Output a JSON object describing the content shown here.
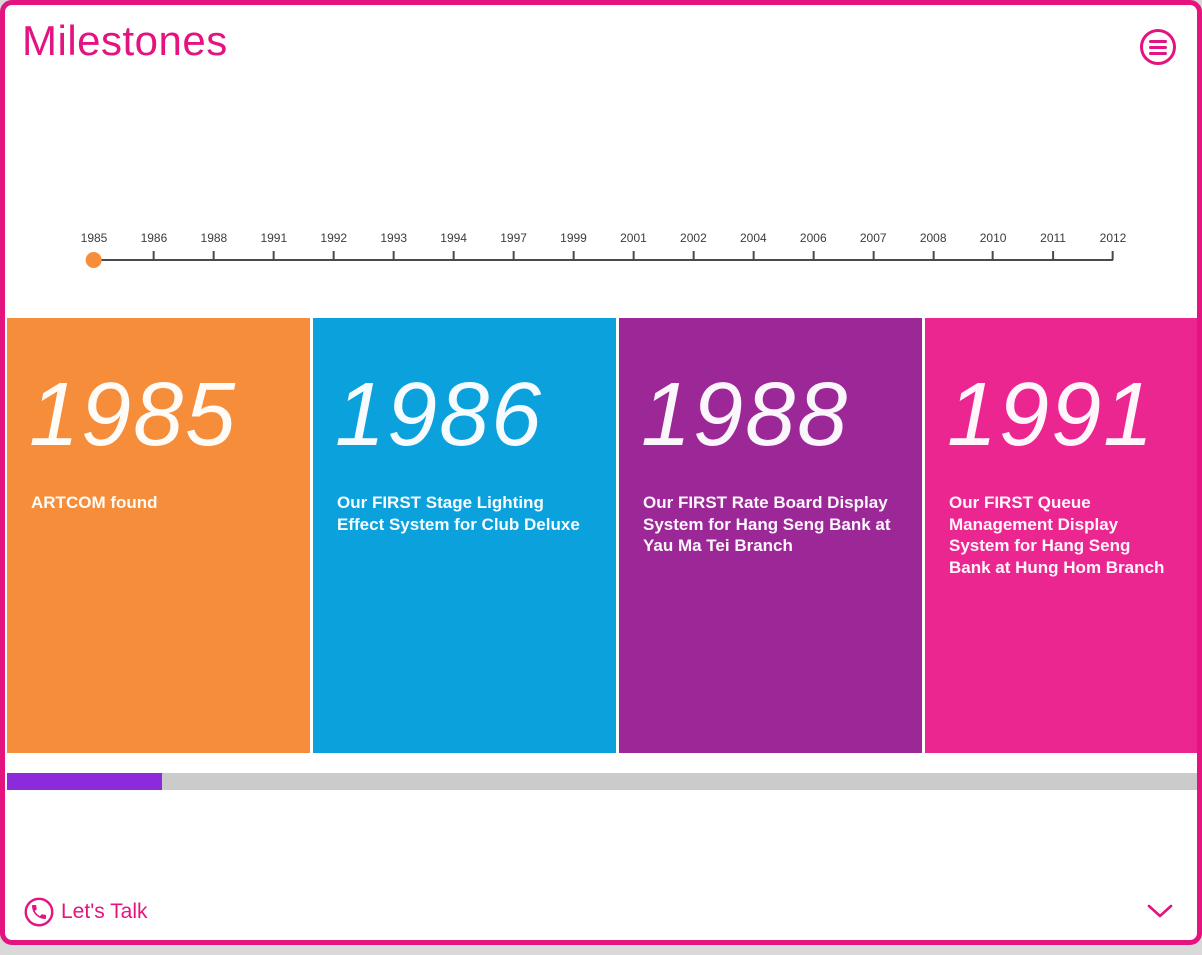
{
  "header": {
    "title": "Milestones"
  },
  "timeline": {
    "years": [
      "1985",
      "1986",
      "1988",
      "1991",
      "1992",
      "1993",
      "1994",
      "1997",
      "1999",
      "2001",
      "2002",
      "2004",
      "2006",
      "2007",
      "2008",
      "2010",
      "2011",
      "2012"
    ],
    "selected_year": "1985"
  },
  "milestones": [
    {
      "year": "1985",
      "description": "ARTCOM found",
      "color": "#f68d3a"
    },
    {
      "year": "1986",
      "description": "Our FIRST Stage Lighting Effect System for Club Deluxe",
      "color": "#0ba1dc"
    },
    {
      "year": "1988",
      "description": "Our FIRST Rate Board Display System for Hang Seng Bank at Yau Ma Tei Branch",
      "color": "#9c2898"
    },
    {
      "year": "1991",
      "description": "Our FIRST Queue Management Display System for Hang Seng Bank at Hung Hom Branch",
      "color": "#ec2691"
    }
  ],
  "scrollbar": {
    "track_color": "#cbcbcb",
    "thumb_color": "#8c2bdb",
    "thumb_left_percent": 0,
    "thumb_width_percent": 13
  },
  "footer": {
    "lets_talk_label": "Let's Talk"
  },
  "colors": {
    "accent": "#e4137f",
    "timeline_line": "#4a4a4a",
    "timeline_marker": "#f68d3a",
    "year_label_text": "#3c3c3c",
    "page_background": "#ffffff",
    "outside_background": "#d9d9d9"
  }
}
